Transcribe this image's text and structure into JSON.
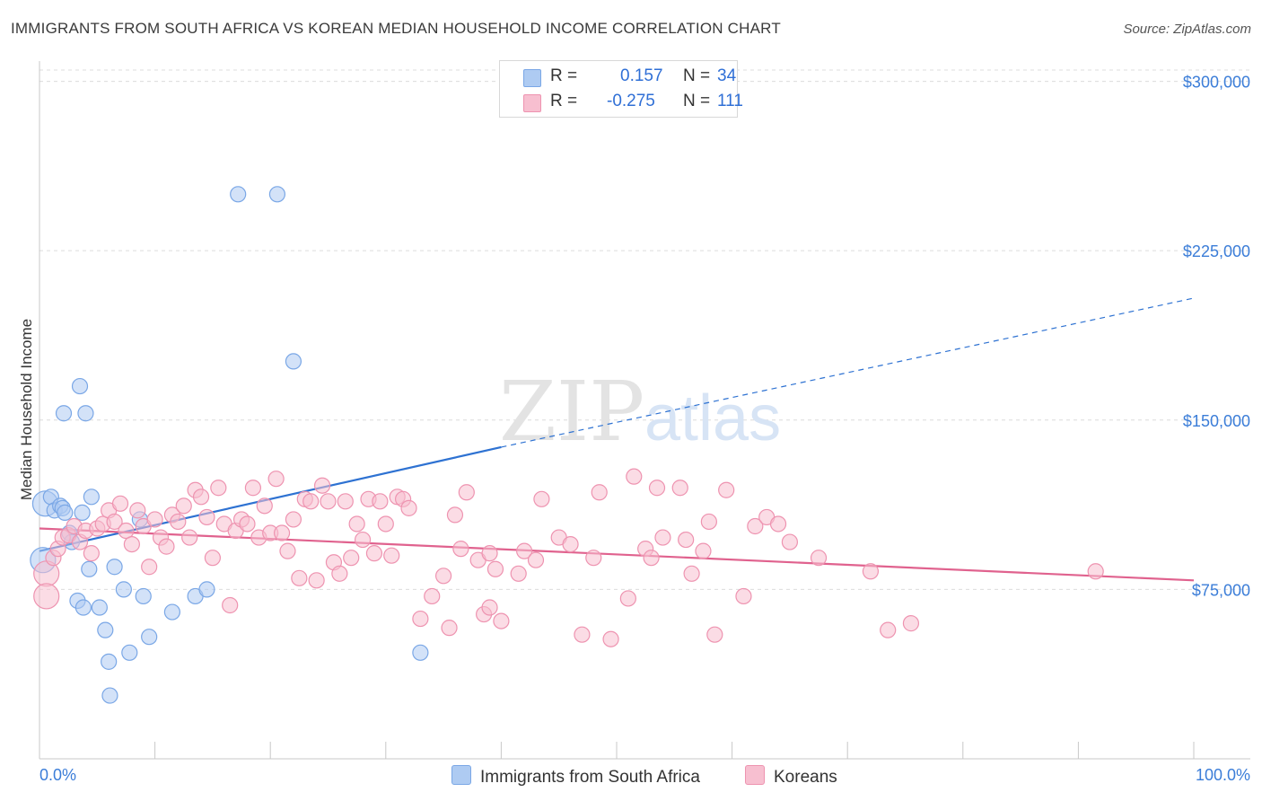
{
  "title": "IMMIGRANTS FROM SOUTH AFRICA VS KOREAN MEDIAN HOUSEHOLD INCOME CORRELATION CHART",
  "source": "Source: ZipAtlas.com",
  "watermark": {
    "zip": "ZIP",
    "atlas": "atlas"
  },
  "legend": {
    "r_label": "R =",
    "n_label": "N =",
    "rows": [
      {
        "r": "0.157",
        "n": "34",
        "color": "#aecbf2",
        "border": "#7aa7e6"
      },
      {
        "r": "-0.275",
        "n": "111",
        "color": "#f7bfd0",
        "border": "#ee93b0"
      }
    ]
  },
  "bottom_legend": [
    {
      "label": "Immigrants from South Africa",
      "color": "#aecbf2",
      "border": "#7aa7e6"
    },
    {
      "label": "Koreans",
      "color": "#f7bfd0",
      "border": "#ee93b0"
    }
  ],
  "chart_data": {
    "type": "scatter",
    "ylabel": "Median Household Income",
    "xlabel": "",
    "x_tick_labels": [
      "0.0%",
      "100.0%"
    ],
    "xlim": [
      0,
      100
    ],
    "ylim": [
      0,
      305000
    ],
    "y_ticks": [
      75000,
      150000,
      225000,
      300000
    ],
    "y_tick_labels": [
      "$75,000",
      "$150,000",
      "$225,000",
      "$300,000"
    ],
    "grid": "horizontal dashed",
    "series": [
      {
        "name": "Immigrants from South Africa",
        "color": "#7aa7e6",
        "fill": "#aecbf2",
        "line_color": "#2e72d2",
        "trend": {
          "x0": 0,
          "y0": 92000,
          "x1": 40,
          "y1": 138000,
          "x_dash_end": 100,
          "y_dash_end": 204000
        },
        "points": [
          [
            0.5,
            113000
          ],
          [
            1.0,
            116000
          ],
          [
            1.3,
            110000
          ],
          [
            1.8,
            112000
          ],
          [
            2.0,
            111000
          ],
          [
            2.2,
            109000
          ],
          [
            2.6,
            100000
          ],
          [
            2.8,
            96000
          ],
          [
            3.3,
            70000
          ],
          [
            3.5,
            165000
          ],
          [
            2.1,
            153000
          ],
          [
            4.0,
            153000
          ],
          [
            3.7,
            109000
          ],
          [
            4.5,
            116000
          ],
          [
            4.3,
            84000
          ],
          [
            3.8,
            67000
          ],
          [
            5.2,
            67000
          ],
          [
            5.7,
            57000
          ],
          [
            6.0,
            43000
          ],
          [
            6.1,
            28000
          ],
          [
            6.5,
            85000
          ],
          [
            7.3,
            75000
          ],
          [
            7.8,
            47000
          ],
          [
            8.7,
            106000
          ],
          [
            9.0,
            72000
          ],
          [
            9.5,
            54000
          ],
          [
            11.5,
            65000
          ],
          [
            13.5,
            72000
          ],
          [
            14.5,
            75000
          ],
          [
            17.2,
            250000
          ],
          [
            20.6,
            250000
          ],
          [
            22.0,
            176000
          ],
          [
            33.0,
            47000
          ],
          [
            0.3,
            88000
          ]
        ]
      },
      {
        "name": "Koreans",
        "color": "#ee93b0",
        "fill": "#f7bfd0",
        "line_color": "#e0628e",
        "trend": {
          "x0": 0,
          "y0": 102000,
          "x1": 100,
          "y1": 79000
        },
        "points": [
          [
            0.6,
            82000
          ],
          [
            0.6,
            72000
          ],
          [
            1.2,
            89000
          ],
          [
            1.6,
            93000
          ],
          [
            2.0,
            98000
          ],
          [
            2.5,
            99000
          ],
          [
            3.0,
            103000
          ],
          [
            3.5,
            96000
          ],
          [
            4.0,
            101000
          ],
          [
            4.5,
            91000
          ],
          [
            5.0,
            102000
          ],
          [
            5.5,
            104000
          ],
          [
            6.0,
            110000
          ],
          [
            6.5,
            105000
          ],
          [
            7.0,
            113000
          ],
          [
            7.5,
            101000
          ],
          [
            8.0,
            95000
          ],
          [
            8.5,
            110000
          ],
          [
            9.0,
            103000
          ],
          [
            9.5,
            85000
          ],
          [
            10.0,
            106000
          ],
          [
            10.5,
            98000
          ],
          [
            11.0,
            94000
          ],
          [
            11.5,
            108000
          ],
          [
            12.0,
            105000
          ],
          [
            12.5,
            112000
          ],
          [
            13.0,
            98000
          ],
          [
            13.5,
            119000
          ],
          [
            14.0,
            116000
          ],
          [
            14.5,
            107000
          ],
          [
            15.0,
            89000
          ],
          [
            15.5,
            120000
          ],
          [
            16.0,
            104000
          ],
          [
            16.5,
            68000
          ],
          [
            17.0,
            101000
          ],
          [
            17.5,
            106000
          ],
          [
            18.0,
            104000
          ],
          [
            18.5,
            120000
          ],
          [
            19.0,
            98000
          ],
          [
            19.5,
            112000
          ],
          [
            20.0,
            100000
          ],
          [
            20.5,
            124000
          ],
          [
            21.0,
            100000
          ],
          [
            21.5,
            92000
          ],
          [
            22.0,
            106000
          ],
          [
            22.5,
            80000
          ],
          [
            23.0,
            115000
          ],
          [
            23.5,
            114000
          ],
          [
            24.0,
            79000
          ],
          [
            24.5,
            121000
          ],
          [
            25.0,
            114000
          ],
          [
            25.5,
            87000
          ],
          [
            26.0,
            82000
          ],
          [
            26.5,
            114000
          ],
          [
            27.0,
            89000
          ],
          [
            27.5,
            104000
          ],
          [
            28.0,
            97000
          ],
          [
            28.5,
            115000
          ],
          [
            29.0,
            91000
          ],
          [
            29.5,
            114000
          ],
          [
            30.0,
            104000
          ],
          [
            30.5,
            90000
          ],
          [
            31.0,
            116000
          ],
          [
            31.5,
            115000
          ],
          [
            32.0,
            111000
          ],
          [
            33.0,
            62000
          ],
          [
            34.0,
            72000
          ],
          [
            35.0,
            81000
          ],
          [
            35.5,
            58000
          ],
          [
            36.0,
            108000
          ],
          [
            36.5,
            93000
          ],
          [
            37.0,
            118000
          ],
          [
            38.0,
            88000
          ],
          [
            38.5,
            64000
          ],
          [
            39.0,
            91000
          ],
          [
            39.5,
            84000
          ],
          [
            40.0,
            61000
          ],
          [
            41.5,
            82000
          ],
          [
            42.0,
            92000
          ],
          [
            43.0,
            88000
          ],
          [
            43.5,
            115000
          ],
          [
            45.0,
            98000
          ],
          [
            46.0,
            95000
          ],
          [
            47.0,
            55000
          ],
          [
            48.0,
            89000
          ],
          [
            48.5,
            118000
          ],
          [
            49.5,
            53000
          ],
          [
            51.0,
            71000
          ],
          [
            51.5,
            125000
          ],
          [
            52.5,
            93000
          ],
          [
            53.0,
            89000
          ],
          [
            53.5,
            120000
          ],
          [
            54.0,
            98000
          ],
          [
            55.5,
            120000
          ],
          [
            56.0,
            97000
          ],
          [
            56.5,
            82000
          ],
          [
            57.5,
            92000
          ],
          [
            58.0,
            105000
          ],
          [
            58.5,
            55000
          ],
          [
            59.5,
            119000
          ],
          [
            61.0,
            72000
          ],
          [
            62.0,
            103000
          ],
          [
            63.0,
            107000
          ],
          [
            64.0,
            104000
          ],
          [
            65.0,
            96000
          ],
          [
            67.5,
            89000
          ],
          [
            72.0,
            83000
          ],
          [
            73.5,
            57000
          ],
          [
            75.5,
            60000
          ],
          [
            91.5,
            83000
          ],
          [
            39.0,
            67000
          ]
        ]
      }
    ]
  }
}
